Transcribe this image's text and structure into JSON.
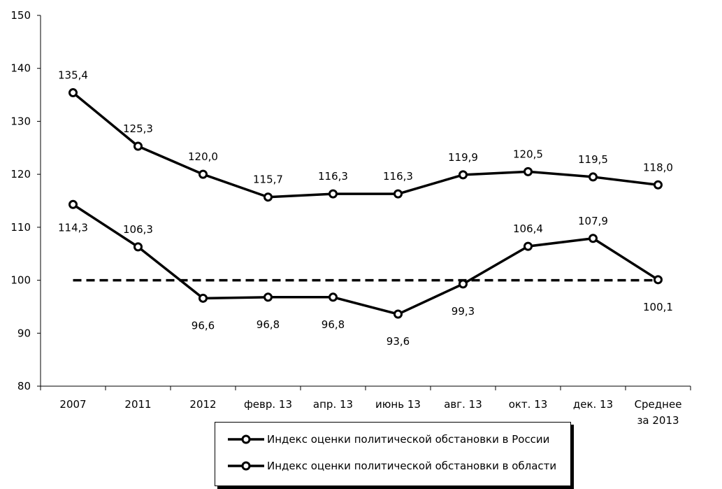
{
  "chart_data": {
    "type": "line",
    "categories": [
      "2007",
      "2011",
      "2012",
      "февр. 13",
      "апр. 13",
      "июнь 13",
      "авг. 13",
      "окт. 13",
      "дек. 13",
      "Среднее за 2013"
    ],
    "category_lines": [
      [
        "2007"
      ],
      [
        "2011"
      ],
      [
        "2012"
      ],
      [
        "февр. 13"
      ],
      [
        "апр. 13"
      ],
      [
        "июнь 13"
      ],
      [
        "авг. 13"
      ],
      [
        "окт. 13"
      ],
      [
        "дек. 13"
      ],
      [
        "Среднее",
        "за 2013"
      ]
    ],
    "series": [
      {
        "name": "Индекс оценки политической обстановки в России",
        "values": [
          135.4,
          125.3,
          120.0,
          115.7,
          116.3,
          116.3,
          119.9,
          120.5,
          119.5,
          118.0
        ],
        "labels": [
          "135,4",
          "125,3",
          "120,0",
          "115,7",
          "116,3",
          "116,3",
          "119,9",
          "120,5",
          "119,5",
          "118,0"
        ],
        "color": "#000000"
      },
      {
        "name": "Индекс оценки политической обстановки в области",
        "values": [
          114.3,
          106.3,
          96.6,
          96.8,
          96.8,
          93.6,
          99.3,
          106.4,
          107.9,
          100.1
        ],
        "labels": [
          "114,3",
          "106,3",
          "96,6",
          "96,8",
          "96,8",
          "93,6",
          "99,3",
          "106,4",
          "107,9",
          "100,1"
        ],
        "color": "#000000"
      }
    ],
    "reference_line": {
      "value": 100,
      "style": "dashed"
    },
    "y_ticks": [
      "80",
      "90",
      "100",
      "110",
      "120",
      "130",
      "140",
      "150"
    ],
    "ylim": [
      80,
      150
    ],
    "grid": false,
    "legend_position": "bottom"
  },
  "legend": {
    "items": [
      "Индекс оценки политической обстановки в России",
      "Индекс оценки политической обстановки в области"
    ]
  }
}
